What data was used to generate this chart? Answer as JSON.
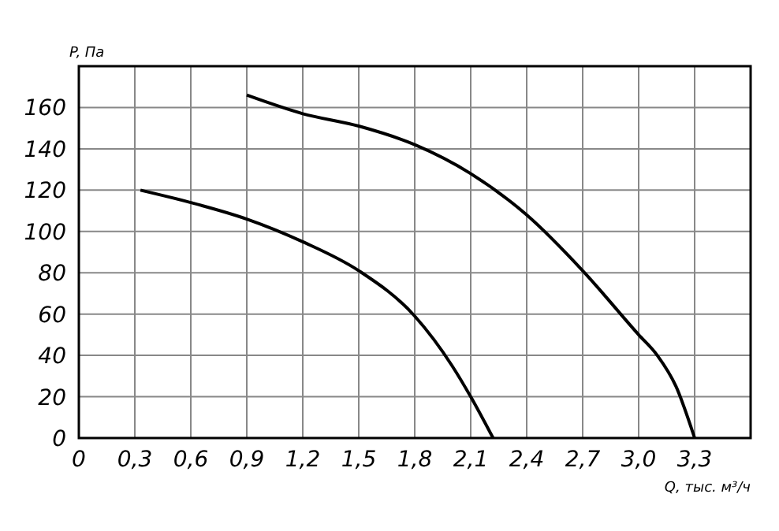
{
  "chart_data": {
    "type": "line",
    "xlabel": "Q, тыс. м³/ч",
    "ylabel": "P, Па",
    "xlim": [
      0,
      3.6
    ],
    "ylim": [
      0,
      180
    ],
    "xticks": [
      0,
      {
        "value": 0.3,
        "label": "0,3"
      },
      {
        "value": 0.6,
        "label": "0,6"
      },
      {
        "value": 0.9,
        "label": "0,9"
      },
      {
        "value": 1.2,
        "label": "1,2"
      },
      {
        "value": 1.5,
        "label": "1,5"
      },
      {
        "value": 1.8,
        "label": "1,8"
      },
      {
        "value": 2.1,
        "label": "2,1"
      },
      {
        "value": 2.4,
        "label": "2,4"
      },
      {
        "value": 2.7,
        "label": "2,7"
      },
      {
        "value": 3.0,
        "label": "3,0"
      },
      {
        "value": 3.3,
        "label": "3,3"
      },
      {
        "value": 3.6,
        "label": null
      }
    ],
    "yticks": [
      0,
      20,
      40,
      60,
      80,
      100,
      120,
      140,
      160,
      {
        "value": 180,
        "label": null
      }
    ],
    "grid": true,
    "marker": "none",
    "line_style": "solid",
    "series": [
      {
        "color": "#000000",
        "x": [
          0.33,
          0.6,
          0.9,
          1.2,
          1.5,
          1.8,
          2.0,
          2.1,
          2.22
        ],
        "values": [
          120,
          114,
          106,
          95,
          81,
          59,
          35,
          20,
          0
        ]
      },
      {
        "color": "#000000",
        "x": [
          0.9,
          1.2,
          1.5,
          1.8,
          2.1,
          2.4,
          2.7,
          3.0,
          3.1,
          3.2,
          3.3
        ],
        "values": [
          166,
          157,
          151,
          142,
          128,
          108,
          81,
          50,
          40,
          25,
          0
        ]
      }
    ]
  }
}
